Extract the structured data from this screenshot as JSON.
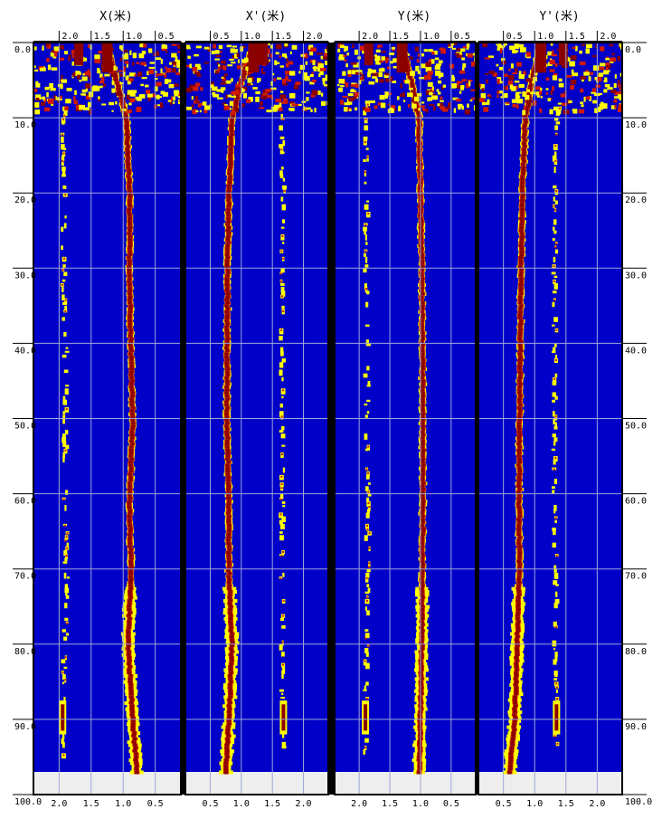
{
  "chart_data": {
    "type": "heatmap",
    "y_axis": {
      "ylim": [
        0,
        100
      ],
      "tick_values": [
        0,
        10,
        20,
        30,
        40,
        50,
        60,
        70,
        80,
        90,
        100
      ],
      "tick_labels": [
        "0.0",
        "10.0",
        "20.0",
        "30.0",
        "40.0",
        "50.0",
        "60.0",
        "70.0",
        "80.0",
        "90.0",
        "100.0"
      ],
      "data_extent": 97.0
    },
    "colors": {
      "background": "#0000c8",
      "high": "#8b0000",
      "mid": "#d11a00",
      "low": "#ffff00",
      "grid": "#9ea6d8",
      "nodata": "#eeeeee",
      "divider": "#000000"
    },
    "panels": [
      {
        "title": "X(米)",
        "orientation": "reversed",
        "xlim": [
          2.4,
          0.1
        ],
        "top_tick_labels": [
          "2.0",
          "1.5",
          "1.0",
          "0.5"
        ],
        "bottom_tick_labels": [
          "2.0",
          "1.5",
          "1.0",
          "0.5"
        ],
        "tick_values": [
          2.0,
          1.5,
          1.0,
          0.5
        ],
        "main_trace": {
          "x": [
            1.25,
            1.1,
            0.95,
            0.9,
            0.9,
            0.88,
            0.85,
            0.9,
            0.88,
            0.92,
            0.85,
            0.78
          ],
          "y": [
            0,
            5,
            10,
            20,
            30,
            40,
            50,
            60,
            70,
            80,
            90,
            97
          ]
        },
        "secondary_trace": {
          "x": [
            1.65,
            1.8,
            1.95,
            1.92,
            1.93,
            1.9,
            1.9,
            1.9,
            1.88,
            1.9,
            1.95
          ],
          "y": [
            0,
            5,
            10,
            20,
            30,
            40,
            50,
            60,
            70,
            80,
            90
          ]
        }
      },
      {
        "title": "X'(米)",
        "orientation": "normal",
        "xlim": [
          0.1,
          2.4
        ],
        "top_tick_labels": [
          "0.5",
          "1.0",
          "1.5",
          "2.0"
        ],
        "bottom_tick_labels": [
          "0.5",
          "1.0",
          "1.5",
          "2.0"
        ],
        "tick_values": [
          0.5,
          1.0,
          1.5,
          2.0
        ],
        "main_trace": {
          "x": [
            1.2,
            1.0,
            0.85,
            0.8,
            0.78,
            0.77,
            0.77,
            0.8,
            0.8,
            0.85,
            0.8,
            0.75
          ],
          "y": [
            0,
            5,
            10,
            20,
            30,
            40,
            50,
            60,
            70,
            80,
            90,
            97
          ]
        },
        "secondary_trace": {
          "x": [
            1.4,
            1.55,
            1.65,
            1.67,
            1.65,
            1.66,
            1.66,
            1.66,
            1.65,
            1.66,
            1.68
          ],
          "y": [
            0,
            5,
            10,
            20,
            30,
            40,
            50,
            60,
            70,
            80,
            90
          ]
        }
      },
      {
        "title": "Y(米)",
        "orientation": "reversed",
        "xlim": [
          2.4,
          0.1
        ],
        "top_tick_labels": [
          "2.0",
          "1.5",
          "1.0",
          "0.5"
        ],
        "bottom_tick_labels": [
          "2.0",
          "1.5",
          "1.0",
          "0.5"
        ],
        "tick_values": [
          2.0,
          1.5,
          1.0,
          0.5
        ],
        "main_trace": {
          "x": [
            1.3,
            1.15,
            1.02,
            1.0,
            0.98,
            0.97,
            0.96,
            0.96,
            0.97,
            0.98,
            1.0,
            1.02
          ],
          "y": [
            0,
            5,
            10,
            20,
            30,
            40,
            50,
            60,
            70,
            80,
            90,
            97
          ]
        },
        "secondary_trace": {
          "x": [
            1.8,
            1.85,
            1.9,
            1.88,
            1.88,
            1.87,
            1.87,
            1.86,
            1.86,
            1.88,
            1.9
          ],
          "y": [
            0,
            5,
            10,
            20,
            30,
            40,
            50,
            60,
            70,
            80,
            90
          ]
        }
      },
      {
        "title": "Y'(米)",
        "orientation": "normal",
        "xlim": [
          0.1,
          2.4
        ],
        "top_tick_labels": [
          "0.5",
          "1.0",
          "1.5",
          "2.0"
        ],
        "bottom_tick_labels": [
          "0.5",
          "1.0",
          "1.5",
          "2.0"
        ],
        "tick_values": [
          0.5,
          1.0,
          1.5,
          2.0
        ],
        "main_trace": {
          "x": [
            1.1,
            0.95,
            0.85,
            0.8,
            0.78,
            0.77,
            0.76,
            0.75,
            0.76,
            0.72,
            0.68,
            0.6
          ],
          "y": [
            0,
            5,
            10,
            20,
            30,
            40,
            50,
            60,
            70,
            80,
            90,
            97
          ]
        },
        "secondary_trace": {
          "x": [
            1.5,
            1.45,
            1.35,
            1.33,
            1.32,
            1.33,
            1.32,
            1.32,
            1.33,
            1.34,
            1.35
          ],
          "y": [
            0,
            5,
            10,
            20,
            30,
            40,
            50,
            60,
            70,
            80,
            90
          ]
        }
      }
    ]
  }
}
